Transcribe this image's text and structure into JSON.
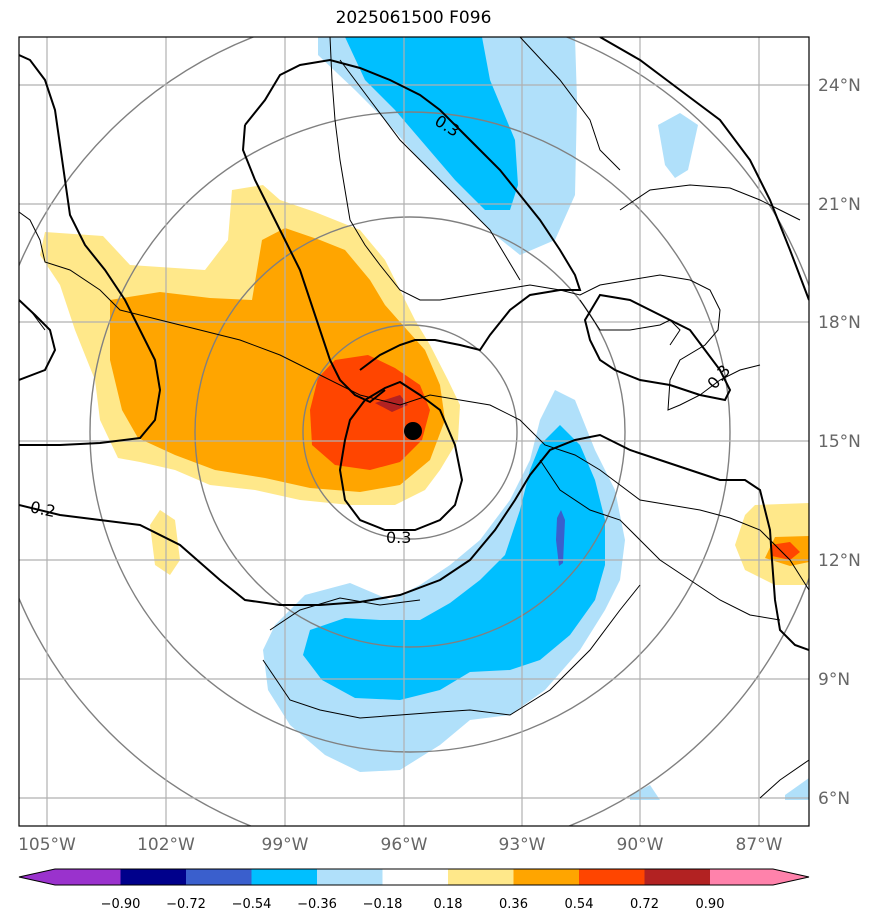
{
  "title": "2025061500 F096",
  "map": {
    "lat_labels": [
      "24°N",
      "21°N",
      "18°N",
      "15°N",
      "12°N",
      "9°N",
      "6°N"
    ],
    "lon_labels": [
      "105°W",
      "102°W",
      "99°W",
      "96°W",
      "93°W",
      "90°W",
      "87°W"
    ],
    "contour_labels": [
      "0.3",
      "0.3",
      "0.3",
      "0.2"
    ],
    "storm_center": {
      "lon": -95.7,
      "lat": 15.2
    }
  },
  "colorbar": {
    "ticks": [
      "−0.90",
      "−0.72",
      "−0.54",
      "−0.36",
      "−0.18",
      "0.18",
      "0.36",
      "0.54",
      "0.72",
      "0.90"
    ],
    "colors": [
      "#9a32cd",
      "#00008b",
      "#3a5fcd",
      "#00bfff",
      "#b0e0fa",
      "#ffffff",
      "#ffe88a",
      "#ffa500",
      "#ff4500",
      "#b22222",
      "#ff82ab"
    ]
  },
  "colors": {
    "neg_dark": "#00bfff",
    "neg_light": "#b0e0fa",
    "pos_light": "#ffe88a",
    "pos_mid": "#ffa500",
    "pos_strong": "#ff4500",
    "pos_max": "#b22222",
    "neg_core": "#3a5fcd"
  }
}
